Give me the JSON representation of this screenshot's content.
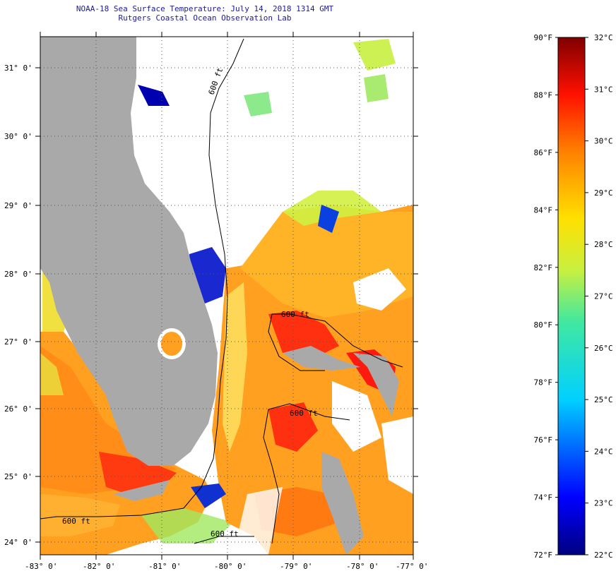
{
  "header": {
    "line1": "NOAA-18 Sea Surface Temperature:  July 14, 2018 1314 GMT",
    "line2": "Rutgers Coastal Ocean Observation Lab"
  },
  "axes": {
    "lat_labels": [
      "31° 0'",
      "30° 0'",
      "29° 0'",
      "28° 0'",
      "27° 0'",
      "26° 0'",
      "25° 0'",
      "24° 0'"
    ],
    "lon_labels": [
      "-83° 0'",
      "-82° 0'",
      "-81° 0'",
      "-80° 0'",
      "-79° 0'",
      "-78° 0'",
      "-77° 0'"
    ]
  },
  "contours": {
    "label": "600 ft"
  },
  "colorbar": {
    "f_labels": [
      "90°F",
      "88°F",
      "86°F",
      "84°F",
      "82°F",
      "80°F",
      "78°F",
      "76°F",
      "74°F",
      "72°F"
    ],
    "c_labels": [
      "32°C",
      "31°C",
      "30°C",
      "29°C",
      "28°C",
      "27°C",
      "26°C",
      "25°C",
      "24°C",
      "23°C",
      "22°C"
    ],
    "min_f": 72,
    "max_f": 90,
    "min_c": 22,
    "max_c": 32
  },
  "colors": {
    "land": "#a9a9a9",
    "cloud": "#ffffff",
    "title": "#1a1a99"
  }
}
